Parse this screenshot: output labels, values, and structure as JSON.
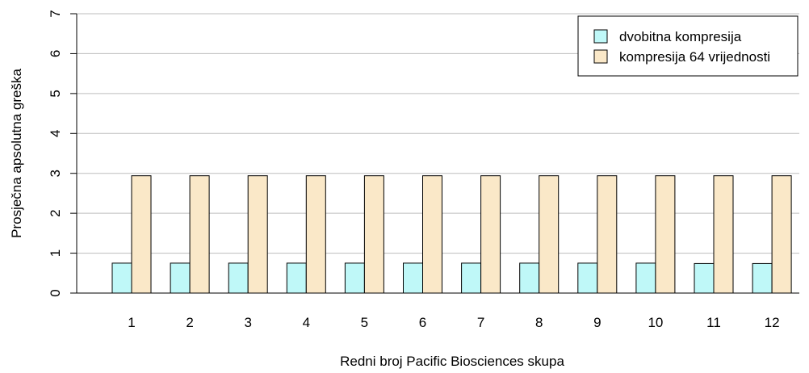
{
  "chart_data": {
    "type": "bar",
    "title": "",
    "xlabel": "Redni broj Pacific Biosciences skupa",
    "ylabel": "Prosječna apsolutna greška",
    "categories": [
      "1",
      "2",
      "3",
      "4",
      "5",
      "6",
      "7",
      "8",
      "9",
      "10",
      "11",
      "12"
    ],
    "ylim": [
      0,
      7
    ],
    "yticks": [
      "0",
      "1",
      "2",
      "3",
      "4",
      "5",
      "6",
      "7"
    ],
    "grid": "horizontal",
    "legend_position": "top-right",
    "series": [
      {
        "name": "dvobitna kompresija",
        "color": "#bff8f8",
        "values": [
          0.75,
          0.75,
          0.75,
          0.75,
          0.75,
          0.75,
          0.75,
          0.75,
          0.75,
          0.75,
          0.74,
          0.74
        ]
      },
      {
        "name": "kompresija 64 vrijednosti",
        "color": "#fae8c8",
        "values": [
          2.94,
          2.94,
          2.94,
          2.94,
          2.94,
          2.94,
          2.94,
          2.94,
          2.94,
          2.94,
          2.94,
          2.94
        ]
      }
    ]
  }
}
